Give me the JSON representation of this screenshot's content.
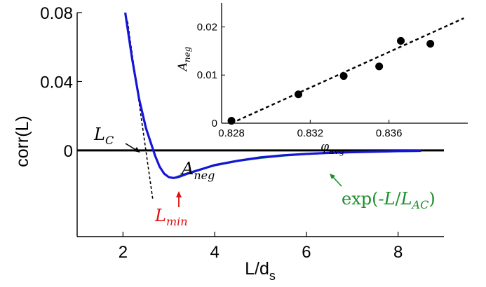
{
  "chart_data": [
    {
      "type": "line",
      "ylabel": "corr(L)",
      "xlabel_main": "L/d",
      "xlabel_sub": "s",
      "xlim": [
        1,
        9
      ],
      "ylim": [
        -0.05,
        0.08
      ],
      "x_ticks": [
        2,
        4,
        6,
        8
      ],
      "x_tick_labels": [
        "2",
        "4",
        "6",
        "8"
      ],
      "y_ticks": [
        0.08,
        0.04,
        0
      ],
      "y_tick_labels": [
        "0.08",
        "0.04",
        "0"
      ],
      "grid": false,
      "colors": {
        "data": "#1515d8",
        "fit": "#1a8f2a",
        "tangent": "#000000",
        "zero_line": "#000000",
        "lmin": "#e01010"
      },
      "series": [
        {
          "role": "data",
          "x": [
            2.05,
            2.2,
            2.35,
            2.5,
            2.6,
            2.7,
            2.8,
            2.9,
            3.0,
            3.1,
            3.2,
            3.4,
            3.7,
            4.0,
            4.5,
            5.0,
            5.5,
            6.0,
            6.5,
            7.0,
            7.5,
            8.0,
            8.5
          ],
          "y": [
            0.08,
            0.053,
            0.03,
            0.013,
            0.005,
            -0.003,
            -0.0095,
            -0.0135,
            -0.0155,
            -0.016,
            -0.0155,
            -0.0135,
            -0.011,
            -0.0085,
            -0.006,
            -0.004,
            -0.0028,
            -0.002,
            -0.0014,
            -0.001,
            -0.0007,
            -0.0004,
            -0.0002
          ]
        },
        {
          "role": "fit",
          "x": [
            3.15,
            3.4,
            3.7,
            4.0,
            4.5,
            5.0,
            5.5,
            6.0,
            6.5,
            7.0,
            7.5,
            8.0,
            8.5
          ],
          "y": [
            -0.0155,
            -0.0132,
            -0.0108,
            -0.0088,
            -0.0062,
            -0.0044,
            -0.0031,
            -0.0022,
            -0.0015,
            -0.0011,
            -0.0008,
            -0.0005,
            -0.0004
          ]
        },
        {
          "role": "tangent",
          "x": [
            2.1,
            2.65
          ],
          "y": [
            0.075,
            -0.0285
          ]
        }
      ],
      "annotations": {
        "lc": {
          "main": "L",
          "sub": "C"
        },
        "aneg": {
          "main": "A",
          "sub": "neg"
        },
        "lmin": {
          "main": "L",
          "sub": "min"
        },
        "fit": {
          "prefix": "exp(-",
          "var1": "L",
          "slash": "/",
          "var2": "L",
          "sub": "AC",
          "suffix": ")"
        }
      },
      "markers": {
        "lmin_x": 3.2,
        "lmin_y": -0.016
      }
    },
    {
      "type": "scatter",
      "xlabel_main": "φ",
      "xlabel_sub": "avg",
      "ylabel_main": "A",
      "ylabel_sub": "neg",
      "xlim": [
        0.8275,
        0.84
      ],
      "ylim": [
        0,
        0.025
      ],
      "x_ticks": [
        0.828,
        0.832,
        0.836
      ],
      "x_tick_labels": [
        "0.828",
        "0.832",
        "0.836"
      ],
      "y_ticks": [
        0,
        0.01,
        0.02
      ],
      "y_tick_labels": [
        "0",
        "0.01",
        "0.02"
      ],
      "grid": false,
      "points": {
        "x": [
          0.828,
          0.8314,
          0.8337,
          0.8355,
          0.8366,
          0.8381
        ],
        "y": [
          0.0005,
          0.006,
          0.0098,
          0.0118,
          0.0171,
          0.0165
        ]
      },
      "fit_line": {
        "x": [
          0.828,
          0.8398
        ],
        "y": [
          0.0,
          0.0218
        ]
      }
    }
  ]
}
